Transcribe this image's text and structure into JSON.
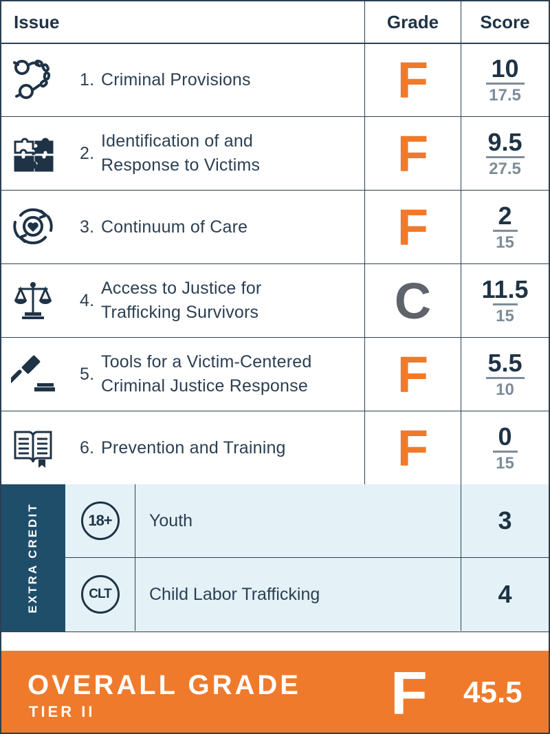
{
  "header": {
    "issue": "Issue",
    "grade": "Grade",
    "score": "Score"
  },
  "colors": {
    "accent_orange": "#ef7a2b",
    "navy": "#1f3346",
    "teal_dark": "#1f4e6b",
    "light_blue": "#e4f2f8",
    "gray_grade": "#5e6469"
  },
  "issues": [
    {
      "num": "1.",
      "line1": "Criminal Provisions",
      "line2": "",
      "grade": "F",
      "score": "10",
      "max": "17.5",
      "icon": "handcuffs-icon"
    },
    {
      "num": "2.",
      "line1": "Identification of and",
      "line2": "Response to Victims",
      "grade": "F",
      "score": "9.5",
      "max": "27.5",
      "icon": "puzzle-icon"
    },
    {
      "num": "3.",
      "line1": "Continuum of Care",
      "line2": "",
      "grade": "F",
      "score": "2",
      "max": "15",
      "icon": "heart-cycle-icon"
    },
    {
      "num": "4.",
      "line1": "Access to Justice for",
      "line2": "Trafficking Survivors",
      "grade": "C",
      "score": "11.5",
      "max": "15",
      "icon": "scales-icon"
    },
    {
      "num": "5.",
      "line1": "Tools for a Victim-Centered",
      "line2": "Criminal Justice Response",
      "grade": "F",
      "score": "5.5",
      "max": "10",
      "icon": "gavel-icon"
    },
    {
      "num": "6.",
      "line1": "Prevention and Training",
      "line2": "",
      "grade": "F",
      "score": "0",
      "max": "15",
      "icon": "book-icon"
    }
  ],
  "extra_credit": {
    "label": "EXTRA CREDIT",
    "items": [
      {
        "badge": "18+",
        "label": "Youth",
        "value": "3"
      },
      {
        "badge": "CLT",
        "label": "Child Labor Trafficking",
        "value": "4"
      }
    ]
  },
  "overall": {
    "title": "OVERALL GRADE",
    "tier": "TIER II",
    "grade": "F",
    "score": "45.5"
  }
}
